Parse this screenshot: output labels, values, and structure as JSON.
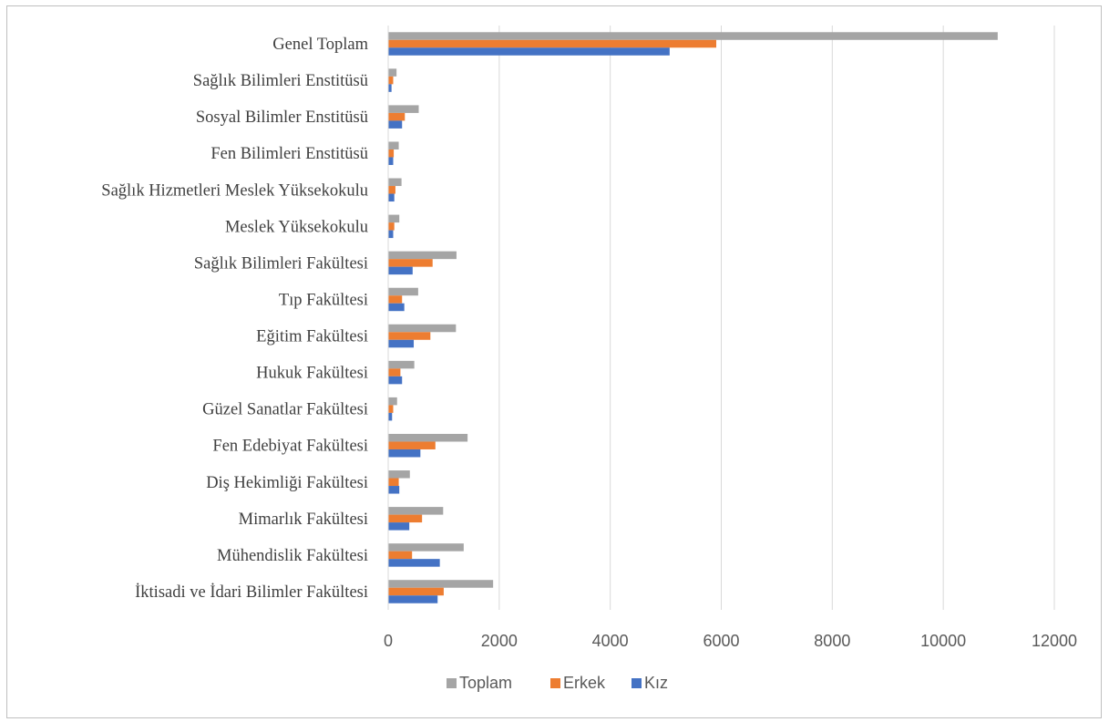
{
  "chart_data": {
    "type": "bar",
    "orientation": "horizontal",
    "categories": [
      "Genel Toplam",
      "Sağlık Bilimleri Enstitüsü",
      "Sosyal Bilimler Enstitüsü",
      "Fen Bilimleri Enstitüsü",
      "Sağlık Hizmetleri Meslek Yüksekokulu",
      "Meslek Yüksekokulu",
      "Sağlık Bilimleri Fakültesi",
      "Tıp Fakültesi",
      "Eğitim Fakültesi",
      "Hukuk Fakültesi",
      "Güzel Sanatlar Fakültesi",
      "Fen Edebiyat Fakültesi",
      "Diş Hekimliği Fakültesi",
      "Mimarlık Fakültesi",
      "Mühendislik Fakültesi",
      "İktisadi ve İdari Bilimler Fakültesi"
    ],
    "series": [
      {
        "name": "Toplam",
        "color": "#A5A5A5",
        "values": [
          10980,
          150,
          550,
          190,
          240,
          200,
          1230,
          540,
          1220,
          470,
          160,
          1430,
          390,
          990,
          1360,
          1890
        ]
      },
      {
        "name": "Erkek",
        "color": "#ED7D31",
        "values": [
          5910,
          90,
          300,
          100,
          130,
          110,
          800,
          250,
          760,
          220,
          90,
          850,
          190,
          610,
          430,
          1000
        ]
      },
      {
        "name": "Kız",
        "color": "#4472C4",
        "values": [
          5070,
          60,
          250,
          90,
          110,
          90,
          440,
          290,
          460,
          250,
          70,
          580,
          200,
          380,
          930,
          890
        ]
      }
    ],
    "xlim": [
      0,
      12000
    ],
    "xticks": [
      "0",
      "2000",
      "4000",
      "6000",
      "8000",
      "10000",
      "12000"
    ],
    "grid": true,
    "legend": "bottom",
    "title": "",
    "xlabel": "",
    "ylabel": ""
  }
}
